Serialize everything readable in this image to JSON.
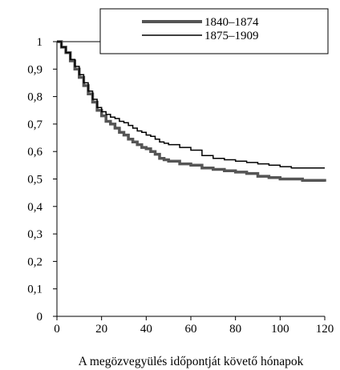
{
  "chart_data": {
    "type": "line",
    "title": "",
    "xlabel": "A megözvegyülés időpontját követő hónapok",
    "ylabel": "",
    "xlim": [
      0,
      120
    ],
    "ylim": [
      0,
      1
    ],
    "x_ticks": [
      0,
      20,
      40,
      60,
      80,
      100,
      120
    ],
    "x_tick_labels": [
      "0",
      "20",
      "40",
      "60",
      "80",
      "100",
      "120"
    ],
    "y_ticks": [
      0,
      0.1,
      0.2,
      0.3,
      0.4,
      0.5,
      0.6,
      0.7,
      0.8,
      0.9,
      1
    ],
    "y_tick_labels": [
      "0",
      "0,1",
      "0,2",
      "0,3",
      "0,4",
      "0,5",
      "0,6",
      "0,7",
      "0,8",
      "0,9",
      "1"
    ],
    "grid": false,
    "legend_position": "top-right",
    "series": [
      {
        "name": "1840–1874",
        "color": "#555555",
        "style": "thick",
        "x": [
          0,
          2,
          4,
          6,
          8,
          10,
          12,
          14,
          16,
          18,
          20,
          22,
          24,
          26,
          28,
          30,
          32,
          34,
          36,
          38,
          40,
          42,
          44,
          46,
          48,
          50,
          55,
          60,
          65,
          70,
          75,
          80,
          85,
          90,
          95,
          100,
          105,
          110,
          115,
          120
        ],
        "y": [
          1.0,
          0.98,
          0.96,
          0.93,
          0.9,
          0.87,
          0.84,
          0.81,
          0.78,
          0.75,
          0.73,
          0.71,
          0.7,
          0.685,
          0.67,
          0.66,
          0.645,
          0.635,
          0.625,
          0.615,
          0.61,
          0.6,
          0.59,
          0.575,
          0.57,
          0.565,
          0.555,
          0.55,
          0.54,
          0.535,
          0.53,
          0.525,
          0.52,
          0.51,
          0.505,
          0.5,
          0.5,
          0.495,
          0.495,
          0.49
        ]
      },
      {
        "name": "1875–1909",
        "color": "#000000",
        "style": "thin",
        "x": [
          0,
          2,
          4,
          6,
          8,
          10,
          12,
          14,
          16,
          18,
          20,
          22,
          24,
          26,
          28,
          30,
          32,
          34,
          36,
          38,
          40,
          42,
          44,
          46,
          48,
          50,
          55,
          60,
          65,
          70,
          75,
          80,
          85,
          90,
          95,
          100,
          105,
          110,
          115,
          120
        ],
        "y": [
          1.0,
          0.98,
          0.96,
          0.935,
          0.91,
          0.88,
          0.85,
          0.82,
          0.79,
          0.76,
          0.745,
          0.735,
          0.725,
          0.72,
          0.71,
          0.705,
          0.695,
          0.685,
          0.675,
          0.67,
          0.66,
          0.655,
          0.645,
          0.635,
          0.63,
          0.625,
          0.615,
          0.605,
          0.585,
          0.575,
          0.57,
          0.565,
          0.56,
          0.555,
          0.55,
          0.545,
          0.54,
          0.54,
          0.54,
          0.54
        ]
      }
    ]
  }
}
